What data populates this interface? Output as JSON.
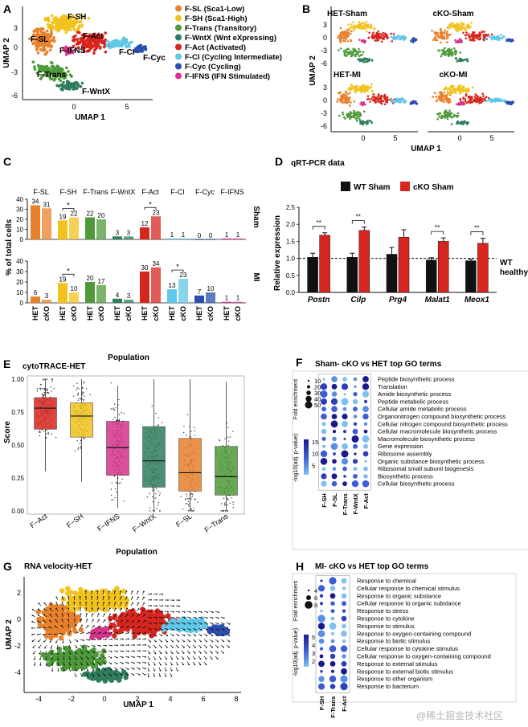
{
  "panels": {
    "A": {
      "letter": "A",
      "legend": [
        {
          "code": "F-SL",
          "desc": "(Sca1-Low)",
          "color": "#E8812C"
        },
        {
          "code": "F-SH",
          "desc": "(Sca1-High)",
          "color": "#F2C31E"
        },
        {
          "code": "F-Trans",
          "desc": "(Transitory)",
          "color": "#4E9A3A"
        },
        {
          "code": "F-WntX",
          "desc": "(Wnt eXpressing)",
          "color": "#2E7D5B"
        },
        {
          "code": "F-Act",
          "desc": "(Activated)",
          "color": "#D7261E"
        },
        {
          "code": "F-CI",
          "desc": "(Cycling Intermediate)",
          "color": "#5FC8E8"
        },
        {
          "code": "F-Cyc",
          "desc": "(Cycling)",
          "color": "#2A4FB0"
        },
        {
          "code": "F-IFNS",
          "desc": "(IFN Stimulated)",
          "color": "#D6338A"
        }
      ],
      "cluster_labels": [
        "F-SH",
        "F-SL",
        "F-Act",
        "F-IFNS",
        "F-CI",
        "F-Cyc",
        "F-Trans",
        "F-WntX"
      ],
      "xlabel": "UMAP 1",
      "ylabel": "UMAP 2",
      "xticks": [
        "0",
        "5"
      ],
      "yticks": [
        "3",
        "0",
        "-3",
        "-6"
      ]
    },
    "B": {
      "letter": "B",
      "subtitles": [
        "HET-Sham",
        "cKO-Sham",
        "HET-MI",
        "cKO-MI"
      ],
      "xlabel": "UMAP 1",
      "ylabel": "UMAP 2",
      "xticks": [
        "0",
        "5"
      ],
      "yticks": [
        "3",
        "0",
        "-3",
        "-6"
      ]
    },
    "C": {
      "letter": "C",
      "ylabel": "% of total cells",
      "xlabel": "Population",
      "row_labels": [
        "Sham",
        "MI"
      ],
      "sig_marker": "*",
      "group_labels": [
        "HET",
        "cKO"
      ]
    },
    "D": {
      "letter": "D",
      "title": "qRT-PCR data",
      "ylabel": "Relative expression",
      "ref_label_1": "WT",
      "ref_label_2": "healthy",
      "sig_marker": "**"
    },
    "E": {
      "letter": "E",
      "title": "cytoTRACE-HET",
      "ylabel": "Score",
      "xlabel": "Population"
    },
    "F": {
      "letter": "F",
      "title": "Sham- cKO vs HET top GO terms",
      "size_legend_title": "Fold enrichment",
      "size_legend": [
        "10",
        "20",
        "30",
        "40",
        "50"
      ],
      "color_legend_title": "-log10(adj. p-value)",
      "color_legend": [
        "15",
        "10",
        "5"
      ],
      "columns": [
        "F-SH",
        "F-SL",
        "F-Trans",
        "F-WntX",
        "F-Act"
      ],
      "terms": [
        "Peptide biosynthetic process",
        "Translation",
        "Amide biosynthetic process",
        "Peptide metabolic process",
        "Cellular amide metabolic process",
        "Organonitrogen compound biosynthetic process",
        "Cellular nitrogen compound biosynthetic process",
        "Cellular macromolecule biosynthetic process",
        "Macromolecule biosynthetic process",
        "Gene expression",
        "Ribosome assembly",
        "Organic substance biosynthetic process",
        "Ribosomal small subunit biogenesis",
        "Biosynthetic process",
        "Cellular biosynthetic process"
      ]
    },
    "G": {
      "letter": "G",
      "title": "RNA velocity-HET",
      "xlabel": "UMAP 1",
      "ylabel": "UMAP 2",
      "xticks": [
        "-4",
        "-2",
        "0",
        "2",
        "4",
        "6",
        "8"
      ],
      "yticks": [
        "2",
        "0",
        "-2",
        "-4"
      ]
    },
    "H": {
      "letter": "H",
      "title": "MI- cKO vs HET top GO terms",
      "size_legend_title": "Fold enrichment",
      "size_legend": [
        "4",
        "6",
        "8"
      ],
      "color_legend_title": "-log10(adj. p-value)",
      "color_legend": [
        "5",
        "4",
        "3",
        "2"
      ],
      "columns": [
        "F-SH",
        "F-Trans",
        "F-Act"
      ],
      "terms": [
        "Response to chemical",
        "Cellular response to chemical stimulus",
        "Response to organic substance",
        "Cellular response to organic substance",
        "Response to stress",
        "Response to cytokine",
        "Response to stimulus",
        "Response to oxygen-containing compound",
        "Response to biotic stimulus",
        "Cellular response to cytokine stimulus",
        "Cellular response to oxygen-containing compound",
        "Response to external stimulus",
        "Response to external biotic stimulus",
        "Response to other organism",
        "Response to bacterium"
      ]
    }
  },
  "watermark": "@稀土掘金技术社区",
  "chart_data": [
    {
      "type": "bar",
      "panel": "C",
      "title": "",
      "xlabel": "Population",
      "ylabel": "% of total cells",
      "ylim": [
        0,
        40
      ],
      "yticks": [
        0,
        10,
        20,
        30,
        40
      ],
      "categories": [
        "F-SL",
        "F-SH",
        "F-Trans",
        "F-WntX",
        "F-Act",
        "F-CI",
        "F-Cyc",
        "F-IFNS"
      ],
      "colors": [
        "#E8812C",
        "#F2C31E",
        "#4E9A3A",
        "#2E7D5B",
        "#D7261E",
        "#5FC8E8",
        "#2A4FB0",
        "#D6338A"
      ],
      "series": [
        {
          "name": "Sham",
          "values_HET": [
            34,
            19,
            22,
            3,
            12,
            1,
            0,
            1
          ],
          "values_cKO": [
            31,
            22,
            20,
            3,
            23,
            1,
            0,
            1
          ],
          "significant": [
            "F-SH",
            "F-Act"
          ]
        },
        {
          "name": "MI",
          "values_HET": [
            6,
            19,
            20,
            4,
            30,
            13,
            7,
            1
          ],
          "values_cKO": [
            3,
            10,
            17,
            3,
            34,
            23,
            10,
            1
          ],
          "significant": [
            "F-SH",
            "F-CI"
          ]
        }
      ]
    },
    {
      "type": "bar",
      "panel": "D",
      "title": "qRT-PCR data",
      "xlabel": "",
      "ylabel": "Relative expression",
      "ylim": [
        0,
        2.5
      ],
      "yticks": [
        0,
        0.5,
        1.0,
        1.5,
        2.0,
        2.5
      ],
      "categories": [
        "Postn",
        "Cilp",
        "Prg4",
        "Malat1",
        "Meox1"
      ],
      "reference_line": 1.0,
      "series": [
        {
          "name": "WT Sham",
          "color": "#111111",
          "values": [
            1.03,
            1.03,
            1.12,
            0.95,
            0.93
          ],
          "errors": [
            0.12,
            0.12,
            0.2,
            0.07,
            0.05
          ]
        },
        {
          "name": "cKO Sham",
          "color": "#D7261E",
          "values": [
            1.68,
            1.82,
            1.62,
            1.5,
            1.44
          ],
          "errors": [
            0.07,
            0.1,
            0.22,
            0.1,
            0.15
          ]
        }
      ],
      "significant": [
        "Postn",
        "Cilp",
        "Malat1",
        "Meox1"
      ]
    },
    {
      "type": "box",
      "panel": "E",
      "title": "cytoTRACE-HET",
      "xlabel": "Population",
      "ylabel": "Score",
      "ylim": [
        0,
        1
      ],
      "yticks": [
        0.0,
        0.25,
        0.5,
        0.75,
        1.0
      ],
      "categories": [
        "F−Act",
        "F−SH",
        "F−IFNS",
        "F−WntX",
        "F−SL",
        "F−Trans"
      ],
      "colors": [
        "#D7261E",
        "#F2C31E",
        "#D6338A",
        "#2E7D5B",
        "#E8812C",
        "#4E9A3A"
      ],
      "boxes": [
        {
          "q1": 0.62,
          "median": 0.78,
          "q3": 0.86,
          "wlow": 0.3,
          "whigh": 1.0
        },
        {
          "q1": 0.56,
          "median": 0.72,
          "q3": 0.82,
          "wlow": 0.22,
          "whigh": 1.0
        },
        {
          "q1": 0.27,
          "median": 0.48,
          "q3": 0.68,
          "wlow": 0.02,
          "whigh": 0.95
        },
        {
          "q1": 0.18,
          "median": 0.38,
          "q3": 0.64,
          "wlow": 0.0,
          "whigh": 1.0
        },
        {
          "q1": 0.15,
          "median": 0.29,
          "q3": 0.55,
          "wlow": 0.0,
          "whigh": 1.0
        },
        {
          "q1": 0.12,
          "median": 0.26,
          "q3": 0.49,
          "wlow": 0.0,
          "whigh": 0.98
        }
      ]
    }
  ]
}
